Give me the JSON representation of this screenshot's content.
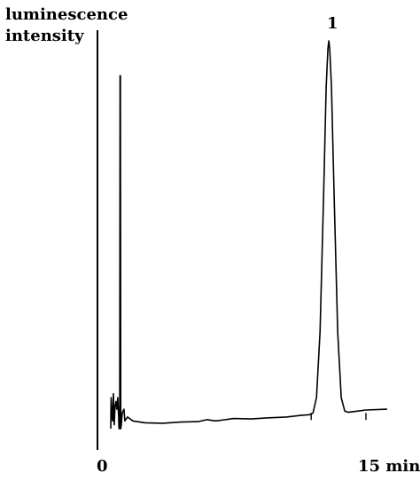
{
  "chart_data": {
    "type": "line",
    "title": "",
    "ylabel_lines": [
      "luminescence",
      "intensity"
    ],
    "xlabel": "",
    "x_unit": "min",
    "xlim": [
      0,
      15
    ],
    "ylim": [
      0,
      100
    ],
    "x_ticks": [
      {
        "value": 0,
        "label": "0"
      },
      {
        "value": 15,
        "label": "15 min"
      }
    ],
    "grid": false,
    "legend": "none",
    "annotations": [
      {
        "label": "1",
        "x": 12.9,
        "y": 100
      }
    ],
    "series": [
      {
        "color": "#000000",
        "points": [
          [
            0.55,
            0
          ],
          [
            0.57,
            8
          ],
          [
            0.6,
            5
          ],
          [
            0.65,
            2
          ],
          [
            0.7,
            9
          ],
          [
            0.72,
            4
          ],
          [
            0.75,
            1
          ],
          [
            0.8,
            6
          ],
          [
            0.85,
            7
          ],
          [
            0.9,
            5
          ],
          [
            0.95,
            8
          ],
          [
            1.0,
            3
          ],
          [
            1.02,
            0
          ],
          [
            1.06,
            0
          ],
          [
            1.08,
            91
          ],
          [
            1.1,
            91
          ],
          [
            1.12,
            0
          ],
          [
            1.15,
            1
          ],
          [
            1.2,
            4
          ],
          [
            1.3,
            5
          ],
          [
            1.35,
            2
          ],
          [
            1.5,
            3
          ],
          [
            1.8,
            2
          ],
          [
            2.5,
            1.5
          ],
          [
            3.5,
            1.4
          ],
          [
            4.5,
            1.7
          ],
          [
            5.5,
            1.8
          ],
          [
            6.0,
            2.3
          ],
          [
            6.5,
            2.0
          ],
          [
            7.5,
            2.6
          ],
          [
            8.5,
            2.5
          ],
          [
            9.5,
            2.8
          ],
          [
            10.5,
            3.0
          ],
          [
            11.3,
            3.4
          ],
          [
            11.8,
            3.6
          ],
          [
            12.0,
            4.0
          ],
          [
            12.2,
            8.0
          ],
          [
            12.4,
            25.0
          ],
          [
            12.6,
            60.0
          ],
          [
            12.75,
            88.0
          ],
          [
            12.85,
            98.0
          ],
          [
            12.9,
            100.0
          ],
          [
            12.95,
            98.0
          ],
          [
            13.05,
            88.0
          ],
          [
            13.2,
            60.0
          ],
          [
            13.4,
            25.0
          ],
          [
            13.6,
            8.0
          ],
          [
            13.8,
            4.5
          ],
          [
            14.0,
            4.2
          ],
          [
            14.5,
            4.5
          ],
          [
            15.0,
            4.8
          ],
          [
            16.2,
            5.0
          ]
        ]
      }
    ],
    "axis_ticks_on_baseline": [
      11.9,
      15.0
    ]
  }
}
